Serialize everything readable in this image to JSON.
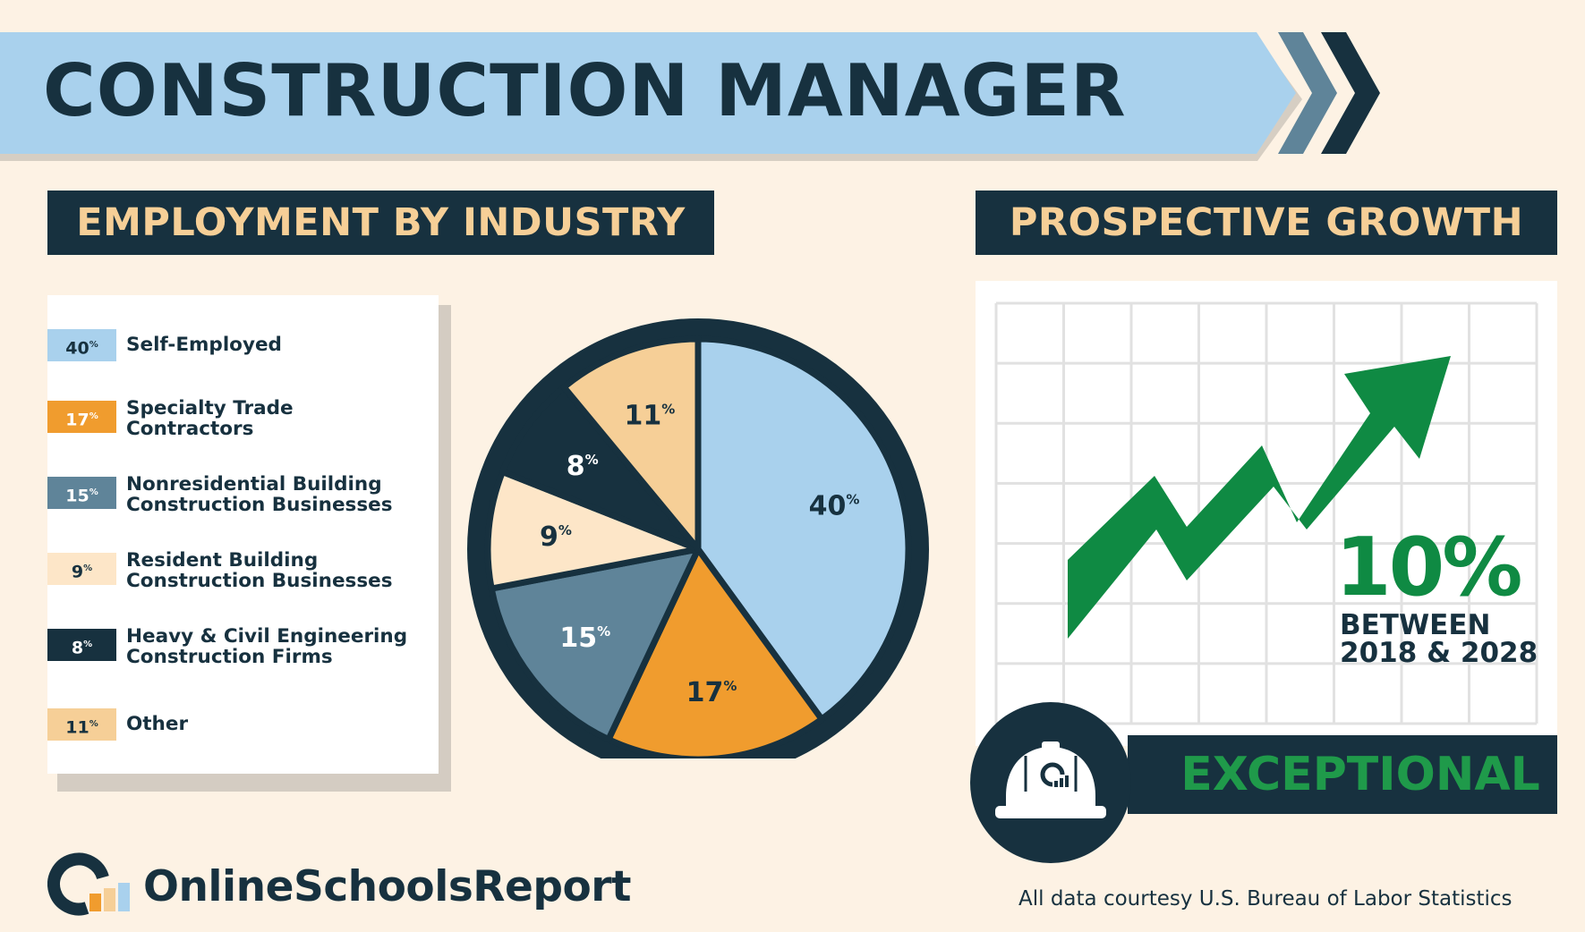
{
  "title": "CONSTRUCTION MANAGER",
  "sections": {
    "employment": "EMPLOYMENT BY INDUSTRY",
    "growth": "PROSPECTIVE GROWTH"
  },
  "colors": {
    "navy": "#17313f",
    "light_blue": "#a9d1ed",
    "orange": "#f09c2e",
    "slate_blue": "#5f8499",
    "cream": "#fde6c8",
    "peach": "#f6cf97",
    "green": "#0f8a43",
    "background": "#fdf2e4"
  },
  "legend": [
    {
      "pct": "40",
      "label_lines": [
        "Self-Employed"
      ],
      "color": "#a9d1ed",
      "text_color": "#17313f"
    },
    {
      "pct": "17",
      "label_lines": [
        "Specialty Trade",
        "Contractors"
      ],
      "color": "#f09c2e",
      "text_color": "#ffffff"
    },
    {
      "pct": "15",
      "label_lines": [
        "Nonresidential Building",
        "Construction Businesses"
      ],
      "color": "#5f8499",
      "text_color": "#ffffff"
    },
    {
      "pct": "9",
      "label_lines": [
        "Resident Building",
        "Construction Businesses"
      ],
      "color": "#fde6c8",
      "text_color": "#17313f"
    },
    {
      "pct": "8",
      "label_lines": [
        "Heavy & Civil Engineering",
        "Construction Firms"
      ],
      "color": "#17313f",
      "text_color": "#ffffff"
    },
    {
      "pct": "11",
      "label_lines": [
        "Other"
      ],
      "color": "#f6cf97",
      "text_color": "#17313f"
    }
  ],
  "chart_data": {
    "type": "pie",
    "categories": [
      "Self-Employed",
      "Specialty Trade Contractors",
      "Nonresidential Building Construction Businesses",
      "Resident Building Construction Businesses",
      "Heavy & Civil Engineering Construction Firms",
      "Other"
    ],
    "values": [
      40,
      17,
      15,
      9,
      8,
      11
    ],
    "colors": [
      "#a9d1ed",
      "#f09c2e",
      "#5f8499",
      "#fde6c8",
      "#17313f",
      "#f6cf97"
    ],
    "label_colors": [
      "#17313f",
      "#17313f",
      "#ffffff",
      "#17313f",
      "#ffffff",
      "#17313f"
    ],
    "unit": "%",
    "start": "12 o'clock, clockwise"
  },
  "growth": {
    "value": "10%",
    "period_line1": "BETWEEN",
    "period_line2": "2018 & 2028",
    "rating": "EXCEPTIONAL",
    "icon": "hard-hat-icon"
  },
  "footer": {
    "brand": "OnlineSchoolsReport",
    "source": "All data courtesy U.S. Bureau of Labor Statistics"
  }
}
